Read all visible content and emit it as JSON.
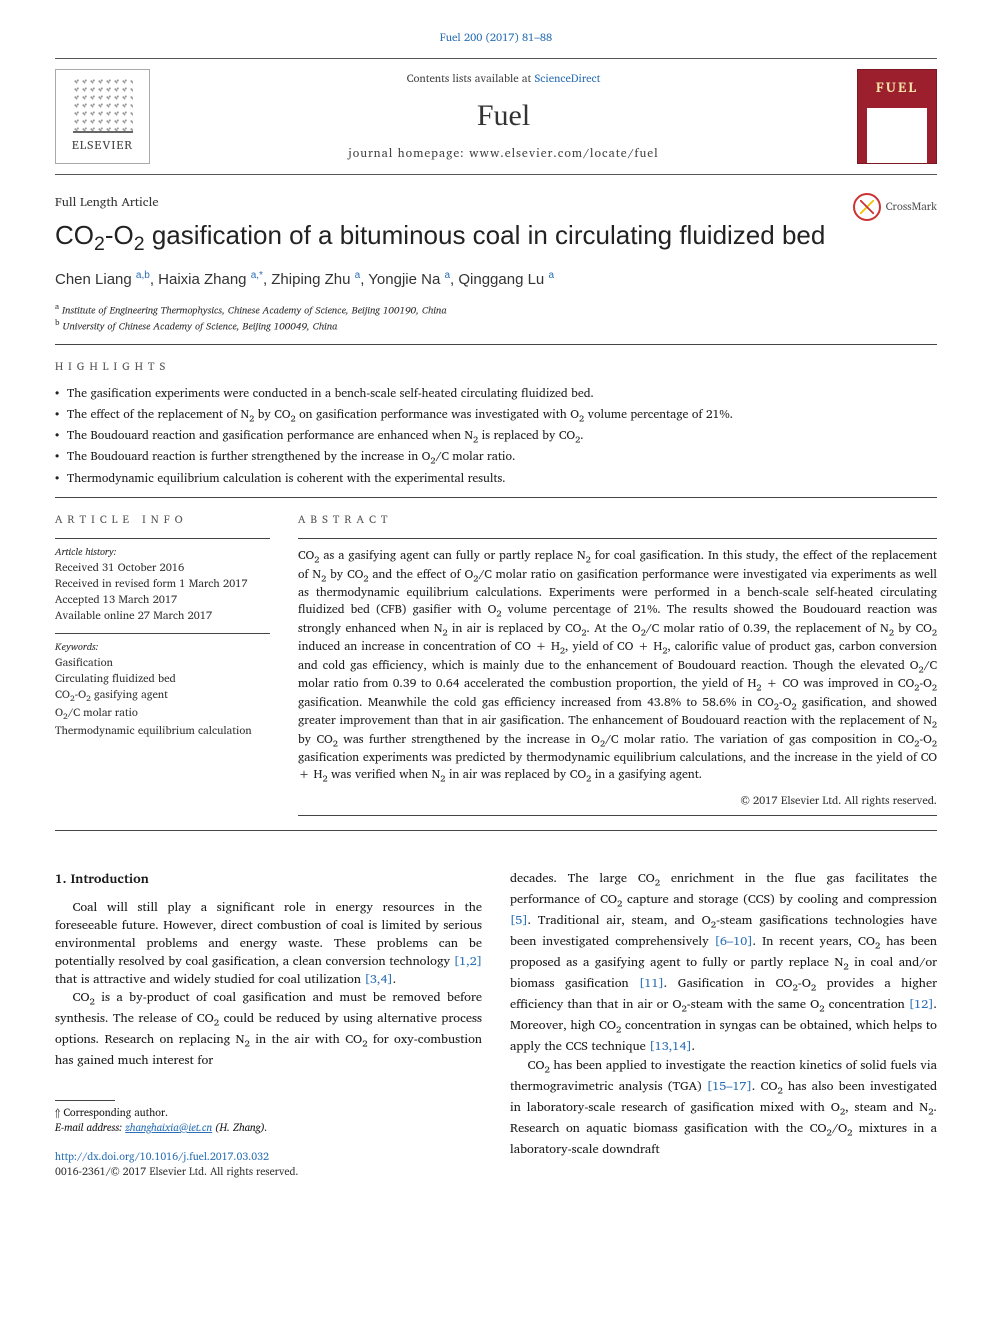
{
  "journal": {
    "citation": "Fuel 200 (2017) 81–88",
    "contents_prefix": "Contents lists available at ",
    "contents_link": "ScienceDirect",
    "title": "Fuel",
    "homepage_prefix": "journal homepage: ",
    "homepage_url": "www.elsevier.com/locate/fuel",
    "publisher_brand": "ELSEVIER",
    "cover_title": "FUEL"
  },
  "crossmark_label": "CrossMark",
  "article": {
    "type": "Full Length Article",
    "title_html": "CO<sub>2</sub>-O<sub>2</sub> gasification of a bituminous coal in circulating fluidized bed",
    "authors_html": "Chen Liang <sup class=\"aff-sup\">a,b</sup>, Haixia Zhang <sup class=\"aff-sup\">a,*</sup>, Zhiping Zhu <sup class=\"aff-sup\">a</sup>, Yongjie Na <sup class=\"aff-sup\">a</sup>, Qinggang Lu <sup class=\"aff-sup\">a</sup>",
    "affiliations": [
      {
        "sup": "a",
        "text": "Institute of Engineering Thermophysics, Chinese Academy of Science, Beijing 100190, China"
      },
      {
        "sup": "b",
        "text": "University of Chinese Academy of Science, Beijing 100049, China"
      }
    ]
  },
  "highlights": {
    "heading": "HIGHLIGHTS",
    "items_html": [
      "The gasification experiments were conducted in a bench-scale self-heated circulating fluidized bed.",
      "The effect of the replacement of N<sub>2</sub> by CO<sub>2</sub> on gasification performance was investigated with O<sub>2</sub> volume percentage of 21%.",
      "The Boudouard reaction and gasification performance are enhanced when N<sub>2</sub> is replaced by CO<sub>2</sub>.",
      "The Boudouard reaction is further strengthened by the increase in O<sub>2</sub>/C molar ratio.",
      "Thermodynamic equilibrium calculation is coherent with the experimental results."
    ]
  },
  "article_info": {
    "heading": "ARTICLE INFO",
    "history_label": "Article history:",
    "history": [
      "Received 31 October 2016",
      "Received in revised form 1 March 2017",
      "Accepted 13 March 2017",
      "Available online 27 March 2017"
    ],
    "keywords_label": "Keywords:",
    "keywords_html": [
      "Gasification",
      "Circulating fluidized bed",
      "CO<sub>2</sub>-O<sub>2</sub> gasifying agent",
      "O<sub>2</sub>/C molar ratio",
      "Thermodynamic equilibrium calculation"
    ]
  },
  "abstract": {
    "heading": "ABSTRACT",
    "text_html": "CO<sub>2</sub> as a gasifying agent can fully or partly replace N<sub>2</sub> for coal gasification. In this study, the effect of the replacement of N<sub>2</sub> by CO<sub>2</sub> and the effect of O<sub>2</sub>/C molar ratio on gasification performance were investigated via experiments as well as thermodynamic equilibrium calculations. Experiments were performed in a bench-scale self-heated circulating fluidized bed (CFB) gasifier with O<sub>2</sub> volume percentage of 21%. The results showed the Boudouard reaction was strongly enhanced when N<sub>2</sub> in air is replaced by CO<sub>2</sub>. At the O<sub>2</sub>/C molar ratio of 0.39, the replacement of N<sub>2</sub> by CO<sub>2</sub> induced an increase in concentration of CO + H<sub>2</sub>, yield of CO + H<sub>2</sub>, calorific value of product gas, carbon conversion and cold gas efficiency, which is mainly due to the enhancement of Boudouard reaction. Though the elevated O<sub>2</sub>/C molar ratio from 0.39 to 0.64 accelerated the combustion proportion, the yield of H<sub>2</sub> + CO was improved in CO<sub>2</sub>-O<sub>2</sub> gasification. Meanwhile the cold gas efficiency increased from 43.8% to 58.6% in CO<sub>2</sub>-O<sub>2</sub> gasification, and showed greater improvement than that in air gasification. The enhancement of Boudouard reaction with the replacement of N<sub>2</sub> by CO<sub>2</sub> was further strengthened by the increase in O<sub>2</sub>/C molar ratio. The variation of gas composition in CO<sub>2</sub>-O<sub>2</sub> gasification experiments was predicted by thermodynamic equilibrium calculations, and the increase in the yield of CO + H<sub>2</sub> was verified when N<sub>2</sub> in air was replaced by CO<sub>2</sub> in a gasifying agent.",
    "copyright": "© 2017 Elsevier Ltd. All rights reserved."
  },
  "body": {
    "section_heading": "1. Introduction",
    "left_paragraphs_html": [
      "Coal will still play a significant role in energy resources in the foreseeable future. However, direct combustion of coal is limited by serious environmental problems and energy waste. These problems can be potentially resolved by coal gasification, a clean conversion technology <span class=\"ref-link\">[1,2]</span> that is attractive and widely studied for coal utilization <span class=\"ref-link\">[3,4]</span>.",
      "CO<sub>2</sub> is a by-product of coal gasification and must be removed before synthesis. The release of CO<sub>2</sub> could be reduced by using alternative process options. Research on replacing N<sub>2</sub> in the air with CO<sub>2</sub> for oxy-combustion has gained much interest for"
    ],
    "right_paragraphs_html": [
      "decades. The large CO<sub>2</sub> enrichment in the flue gas facilitates the performance of CO<sub>2</sub> capture and storage (CCS) by cooling and compression <span class=\"ref-link\">[5]</span>. Traditional air, steam, and O<sub>2</sub>-steam gasifications technologies have been investigated comprehensively <span class=\"ref-link\">[6–10]</span>. In recent years, CO<sub>2</sub> has been proposed as a gasifying agent to fully or partly replace N<sub>2</sub> in coal and/or biomass gasification <span class=\"ref-link\">[11]</span>. Gasification in CO<sub>2</sub>-O<sub>2</sub> provides a higher efficiency than that in air or O<sub>2</sub>-steam with the same O<sub>2</sub> concentration <span class=\"ref-link\">[12]</span>. Moreover, high CO<sub>2</sub> concentration in syngas can be obtained, which helps to apply the CCS technique <span class=\"ref-link\">[13,14]</span>.",
      "CO<sub>2</sub> has been applied to investigate the reaction kinetics of solid fuels via thermogravimetric analysis (TGA) <span class=\"ref-link\">[15–17]</span>. CO<sub>2</sub> has also been investigated in laboratory-scale research of gasification mixed with O<sub>2</sub>, steam and N<sub>2</sub>. Research on aquatic biomass gasification with the CO<sub>2</sub>/O<sub>2</sub> mixtures in a laboratory-scale downdraft"
    ]
  },
  "footer": {
    "corresponding": "Corresponding author.",
    "email_label": "E-mail address: ",
    "email": "zhanghaixia@iet.cn",
    "email_name": " (H. Zhang).",
    "doi_url": "http://dx.doi.org/10.1016/j.fuel.2017.03.032",
    "copyright": "0016-2361/© 2017 Elsevier Ltd. All rights reserved."
  },
  "colors": {
    "link": "#2a6fb5",
    "cover_bg": "#9c1f2e",
    "cover_title": "#f5e6a8",
    "rule": "#444444",
    "text": "#1a1a1a"
  }
}
